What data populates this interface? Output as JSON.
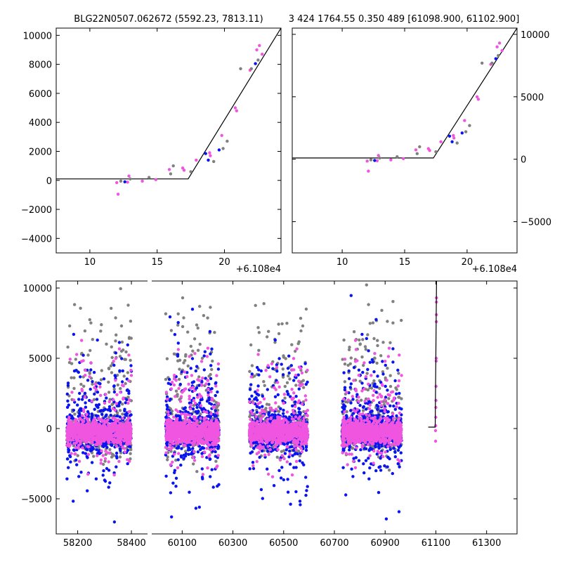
{
  "colors": {
    "gray": "#808080",
    "blue": "#0a14f0",
    "pink": "#f055e0"
  },
  "chart_data": [
    {
      "type": "scatter",
      "title": "BLG22N0507.062672 (5592.23, 7813.11)",
      "x_offset_label": "+6.108e4",
      "xlim": [
        7.5,
        24.2
      ],
      "ylim": [
        -5000,
        10500
      ],
      "xticks": [
        10,
        15,
        20
      ],
      "yticks": [
        -4000,
        -2000,
        0,
        2000,
        4000,
        6000,
        8000,
        10000
      ],
      "ytick_side": "left",
      "model_line": {
        "x": [
          7.5,
          17.3,
          24.2
        ],
        "y": [
          100,
          100,
          10500
        ]
      },
      "series": [
        {
          "color": "pink",
          "x": [
            12.0,
            12.1,
            12.8,
            12.9,
            13.9,
            14.9,
            15.9,
            16.9,
            17.0,
            17.9,
            18.9,
            18.95,
            19.8,
            20.8,
            20.9,
            21.9,
            22.4,
            22.6,
            22.8
          ],
          "y": [
            -150,
            -950,
            -120,
            300,
            -50,
            50,
            750,
            850,
            700,
            1400,
            1900,
            1700,
            3100,
            5000,
            4800,
            7600,
            9000,
            9300,
            8700
          ]
        },
        {
          "color": "blue",
          "x": [
            12.6,
            18.6,
            18.8,
            19.6,
            22.3
          ],
          "y": [
            -100,
            1850,
            1400,
            2100,
            8050
          ]
        },
        {
          "color": "gray",
          "x": [
            12.3,
            13.0,
            14.4,
            16.0,
            16.2,
            17.5,
            19.2,
            19.9,
            20.2,
            21.2,
            22.0,
            22.5
          ],
          "y": [
            -50,
            100,
            200,
            450,
            1000,
            600,
            1300,
            2200,
            2700,
            7700,
            7700,
            8300
          ]
        }
      ]
    },
    {
      "type": "scatter",
      "title": "3 424 1764.55 0.350 489 [61098.900, 61102.900]",
      "x_offset_label": "+6.108e4",
      "xlim": [
        6.0,
        24.0
      ],
      "ylim": [
        -7500,
        10500
      ],
      "xticks": [
        10,
        15,
        20
      ],
      "yticks": [
        -5000,
        0,
        5000,
        10000
      ],
      "ytick_side": "right",
      "model_line": {
        "x": [
          6.0,
          17.3,
          24.0
        ],
        "y": [
          100,
          100,
          10500
        ]
      },
      "series": [
        {
          "color": "pink",
          "x": [
            12.0,
            12.1,
            12.8,
            12.9,
            13.9,
            14.9,
            15.9,
            16.9,
            17.0,
            17.9,
            18.9,
            18.95,
            19.8,
            20.8,
            20.9,
            21.9,
            22.4,
            22.6,
            22.8
          ],
          "y": [
            -150,
            -950,
            -120,
            300,
            -50,
            50,
            750,
            850,
            700,
            1400,
            1900,
            1700,
            3100,
            5000,
            4800,
            7600,
            9000,
            9300,
            8700
          ]
        },
        {
          "color": "blue",
          "x": [
            12.6,
            18.6,
            18.8,
            19.6,
            22.3
          ],
          "y": [
            -100,
            1850,
            1400,
            2100,
            8050
          ]
        },
        {
          "color": "gray",
          "x": [
            12.3,
            13.0,
            14.4,
            16.0,
            16.2,
            17.5,
            19.2,
            19.9,
            20.2,
            21.2,
            22.0,
            22.5
          ],
          "y": [
            -50,
            100,
            200,
            450,
            1000,
            600,
            1300,
            2200,
            2700,
            7700,
            7700,
            8300
          ]
        }
      ]
    },
    {
      "type": "scatter",
      "description_of_panels": "broken x-axis light curve",
      "ylim": [
        -7500,
        10500
      ],
      "yticks": [
        -5000,
        0,
        5000,
        10000
      ],
      "segments": [
        {
          "xlim": [
            58120,
            58460
          ],
          "xticks": [
            58200,
            58400
          ]
        },
        {
          "xlim": [
            59980,
            61420
          ],
          "xticks": [
            60100,
            60300,
            60500,
            60700,
            60900,
            61100,
            61300
          ]
        }
      ],
      "model_line": {
        "x": [
          61070,
          61097.3,
          61102.5,
          61103.0
        ],
        "y": [
          100,
          100,
          10000,
          11000
        ]
      },
      "seasons": [
        {
          "x_start": 58160,
          "x_end": 58400
        },
        {
          "x_start": 60035,
          "x_end": 60245
        },
        {
          "x_start": 60365,
          "x_end": 60595
        },
        {
          "x_start": 60730,
          "x_end": 60965
        }
      ],
      "event_points": {
        "x": [
          61098.9,
          61099.0,
          61099.2,
          61099.5,
          61100.0,
          61100.4,
          61100.8,
          61101.2,
          61101.5,
          61101.8,
          61102.0,
          61102.2,
          61102.5
        ],
        "y": [
          -150,
          -900,
          200,
          800,
          1500,
          2000,
          3000,
          4800,
          5000,
          7600,
          8100,
          9000,
          9300
        ]
      }
    }
  ]
}
